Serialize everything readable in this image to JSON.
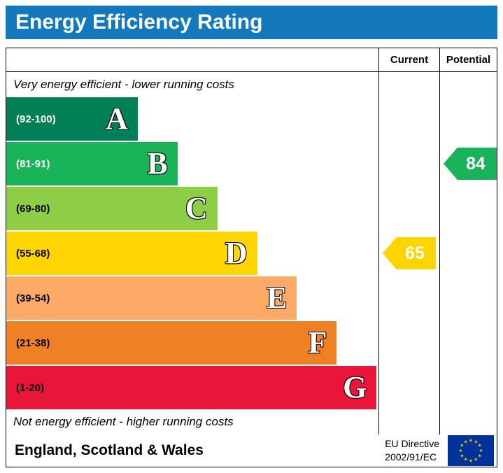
{
  "title": "Energy Efficiency Rating",
  "header": {
    "current": "Current",
    "potential": "Potential"
  },
  "captions": {
    "top": "Very energy efficient - lower running costs",
    "bottom": "Not energy efficient - higher running costs"
  },
  "footer": {
    "region": "England, Scotland & Wales",
    "directive_line1": "EU Directive",
    "directive_line2": "2002/91/EC"
  },
  "colors": {
    "title_bar": "#1479bc",
    "border": "#000000",
    "current_arrow": "#ffd500",
    "potential_arrow": "#19b459"
  },
  "chart_data": {
    "type": "bar",
    "title": "Energy Efficiency Rating",
    "orientation": "horizontal",
    "bands": [
      {
        "letter": "A",
        "range": "(92-100)",
        "min": 92,
        "max": 100,
        "color": "#008054",
        "range_text_color": "#ffffff",
        "width_pct": 35.3
      },
      {
        "letter": "B",
        "range": "(81-91)",
        "min": 81,
        "max": 91,
        "color": "#19b459",
        "range_text_color": "#ffffff",
        "width_pct": 46.0
      },
      {
        "letter": "C",
        "range": "(69-80)",
        "min": 69,
        "max": 80,
        "color": "#8dce46",
        "range_text_color": "#000000",
        "width_pct": 56.7
      },
      {
        "letter": "D",
        "range": "(55-68)",
        "min": 55,
        "max": 68,
        "color": "#ffd500",
        "range_text_color": "#000000",
        "width_pct": 67.4
      },
      {
        "letter": "E",
        "range": "(39-54)",
        "min": 39,
        "max": 54,
        "color": "#fcaa65",
        "range_text_color": "#000000",
        "width_pct": 78.1
      },
      {
        "letter": "F",
        "range": "(21-38)",
        "min": 21,
        "max": 38,
        "color": "#ef8023",
        "range_text_color": "#000000",
        "width_pct": 88.8
      },
      {
        "letter": "G",
        "range": "(1-20)",
        "min": 1,
        "max": 20,
        "color": "#e9153b",
        "range_text_color": "#000000",
        "width_pct": 99.5
      }
    ],
    "current": {
      "value": 65,
      "band": "D",
      "arrow_color": "#ffd500"
    },
    "potential": {
      "value": 84,
      "band": "B",
      "arrow_color": "#19b459"
    }
  }
}
